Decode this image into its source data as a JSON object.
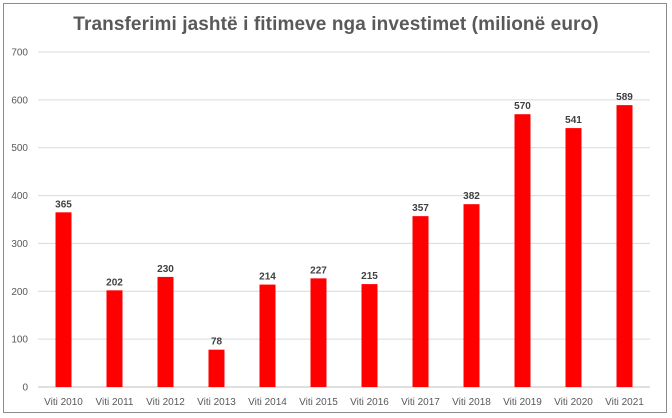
{
  "chart_data": {
    "type": "bar",
    "title": "Transferimi jashtë i fitimeve nga investimet (milionë euro)",
    "categories": [
      "Viti 2010",
      "Viti 2011",
      "Viti 2012",
      "Viti 2013",
      "Viti 2014",
      "Viti 2015",
      "Viti 2016",
      "Viti 2017",
      "Viti 2018",
      "Viti 2019",
      "Viti 2020",
      "Viti 2021"
    ],
    "values": [
      365,
      202,
      230,
      78,
      214,
      227,
      215,
      357,
      382,
      570,
      541,
      589
    ],
    "ylim": [
      0,
      700
    ],
    "yticks": [
      0,
      100,
      200,
      300,
      400,
      500,
      600,
      700
    ],
    "grid": true,
    "bar_color": "#ff0000",
    "data_labels": true
  }
}
